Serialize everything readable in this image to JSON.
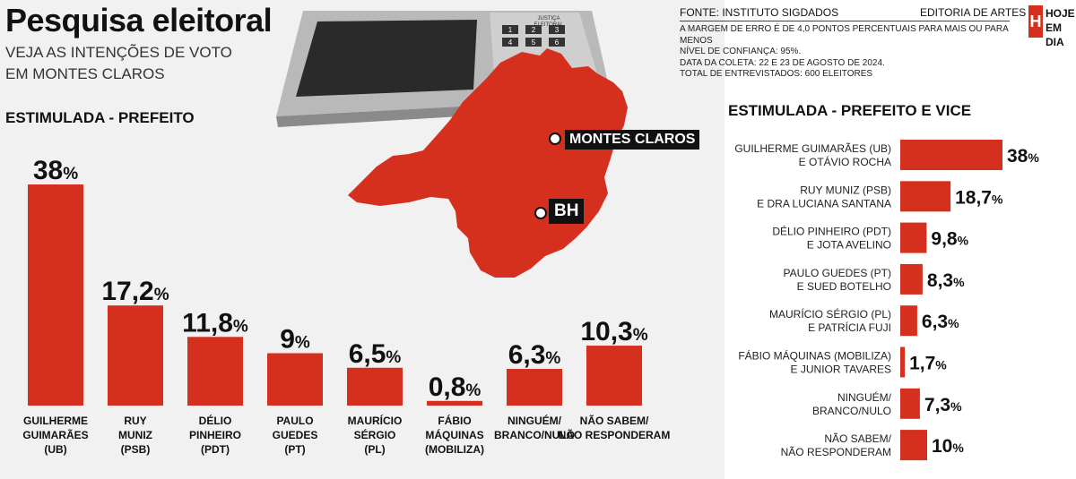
{
  "header": {
    "title": "Pesquisa eleitoral",
    "subtitle_lines": [
      "VEJA AS INTENÇÕES DE VOTO",
      "EM MONTES CLAROS"
    ],
    "source": "FONTE: INSTITUTO SIGDADOS",
    "editoria": "EDITORIA DE ARTES",
    "notes": [
      "A MARGEM DE ERRO É DE 4,0 PONTOS PERCENTUAIS PARA MAIS OU PARA MENOS",
      "NÍVEL DE CONFIANÇA: 95%.",
      "DATA DA COLETA:  22 E 23 DE AGOSTO DE 2024.",
      "TOTAL DE ENTREVISTADOS: 600 ELEITORES"
    ],
    "logo": {
      "box": "H",
      "line1": "HOJE",
      "line2": "EM DIA"
    }
  },
  "map": {
    "labels": {
      "montes_claros": "MONTES CLAROS",
      "bh": "BH"
    },
    "urna_label": [
      "JUSTIÇA",
      "ELEITORAL"
    ],
    "keypad": [
      "1",
      "2",
      "3",
      "4",
      "5",
      "6"
    ]
  },
  "colors": {
    "bar": "#d5301e",
    "text": "#111111",
    "background_left": "#f1f1f1"
  },
  "chart_data": [
    {
      "type": "bar",
      "title": "ESTIMULADA - PREFEITO",
      "categories": [
        [
          "GUILHERME",
          "GUIMARÃES",
          "(UB)"
        ],
        [
          "RUY",
          "MUNIZ",
          "(PSB)"
        ],
        [
          "DÉLIO",
          "PINHEIRO",
          "(PDT)"
        ],
        [
          "PAULO",
          "GUEDES",
          "(PT)"
        ],
        [
          "MAURÍCIO",
          "SÉRGIO",
          "(PL)"
        ],
        [
          "FÁBIO",
          "MÁQUINAS",
          "(MOBILIZA)"
        ],
        [
          "NINGUÉM/",
          "BRANCO/NULO"
        ],
        [
          "NÃO SABEM/",
          "NÃO RESPONDERAM"
        ]
      ],
      "values": [
        38,
        17.2,
        11.8,
        9,
        6.5,
        0.8,
        6.3,
        10.3
      ],
      "value_labels": [
        "38",
        "17,2",
        "11,8",
        "9",
        "6,5",
        "0,8",
        "6,3",
        "10,3"
      ],
      "unit": "%"
    },
    {
      "type": "bar",
      "orientation": "horizontal",
      "title": "ESTIMULADA - PREFEITO E VICE",
      "categories": [
        [
          "GUILHERME GUIMARÃES (UB)",
          "E OTÁVIO ROCHA"
        ],
        [
          "RUY MUNIZ (PSB)",
          "E DRA LUCIANA SANTANA"
        ],
        [
          "DÉLIO PINHEIRO (PDT)",
          "E JOTA AVELINO"
        ],
        [
          "PAULO GUEDES (PT)",
          "E SUED BOTELHO"
        ],
        [
          "MAURÍCIO SÉRGIO (PL)",
          "E PATRÍCIA FUJI"
        ],
        [
          "FÁBIO MÁQUINAS (MOBILIZA)",
          "E JUNIOR TAVARES"
        ],
        [
          "NINGUÉM/",
          "BRANCO/NULO"
        ],
        [
          "NÃO SABEM/",
          "NÃO RESPONDERAM"
        ]
      ],
      "values": [
        38,
        18.7,
        9.8,
        8.3,
        6.3,
        1.7,
        7.3,
        10
      ],
      "value_labels": [
        "38",
        "18,7",
        "9,8",
        "8,3",
        "6,3",
        "1,7",
        "7,3",
        "10"
      ],
      "unit": "%"
    }
  ]
}
